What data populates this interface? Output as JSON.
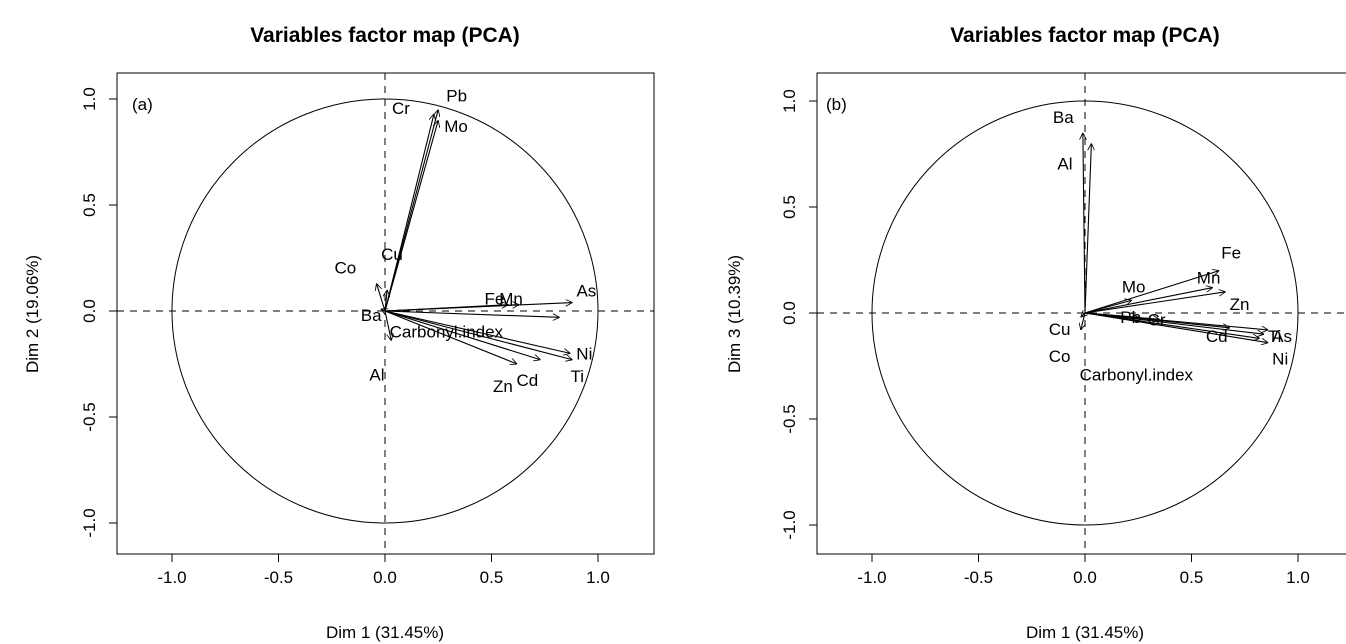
{
  "chart_data": [
    {
      "type": "scatter",
      "panel_label": "(a)",
      "title": "Variables factor map (PCA)",
      "xlabel": "Dim 1 (31.45%)",
      "ylabel": "Dim 2 (19.06%)",
      "xlim": [
        -1.0,
        1.0
      ],
      "ylim": [
        -1.0,
        1.0
      ],
      "xticks": [
        "-1.0",
        "-0.5",
        "0.0",
        "0.5",
        "1.0"
      ],
      "yticks": [
        "-1.0",
        "-0.5",
        "0.0",
        "0.5",
        "1.0"
      ],
      "variables": [
        {
          "name": "Pb",
          "x": 0.25,
          "y": 0.95
        },
        {
          "name": "Cr",
          "x": 0.23,
          "y": 0.93
        },
        {
          "name": "Mo",
          "x": 0.25,
          "y": 0.9
        },
        {
          "name": "Cu",
          "x": 0.01,
          "y": 0.1
        },
        {
          "name": "Co",
          "x": -0.04,
          "y": 0.13
        },
        {
          "name": "Ba",
          "x": -0.02,
          "y": 0.01
        },
        {
          "name": "Al",
          "x": 0.03,
          "y": -0.14
        },
        {
          "name": "Fe",
          "x": 0.58,
          "y": 0.03
        },
        {
          "name": "Mn",
          "x": 0.63,
          "y": 0.03
        },
        {
          "name": "As",
          "x": 0.88,
          "y": 0.04
        },
        {
          "name": "Carbonyl.index",
          "x": 0.82,
          "y": -0.03
        },
        {
          "name": "Ni",
          "x": 0.87,
          "y": -0.2
        },
        {
          "name": "Ti",
          "x": 0.88,
          "y": -0.23
        },
        {
          "name": "Cd",
          "x": 0.73,
          "y": -0.23
        },
        {
          "name": "Zn",
          "x": 0.62,
          "y": -0.25
        }
      ]
    },
    {
      "type": "scatter",
      "panel_label": "(b)",
      "title": "Variables factor map (PCA)",
      "xlabel": "Dim 1 (31.45%)",
      "ylabel": "Dim 3 (10.39%)",
      "xlim": [
        -1.0,
        1.0
      ],
      "ylim": [
        -1.0,
        1.0
      ],
      "xticks": [
        "-1.0",
        "-0.5",
        "0.0",
        "0.5",
        "1.0"
      ],
      "yticks": [
        "-1.0",
        "-0.5",
        "0.0",
        "0.5",
        "1.0"
      ],
      "variables": [
        {
          "name": "Ba",
          "x": -0.01,
          "y": 0.85
        },
        {
          "name": "Al",
          "x": 0.03,
          "y": 0.8
        },
        {
          "name": "Fe",
          "x": 0.63,
          "y": 0.2
        },
        {
          "name": "Mn",
          "x": 0.6,
          "y": 0.12
        },
        {
          "name": "Zn",
          "x": 0.66,
          "y": 0.1
        },
        {
          "name": "Mo",
          "x": 0.22,
          "y": 0.06
        },
        {
          "name": "Cu",
          "x": -0.02,
          "y": -0.02
        },
        {
          "name": "Co",
          "x": -0.02,
          "y": -0.08
        },
        {
          "name": "Pb",
          "x": 0.25,
          "y": -0.02
        },
        {
          "name": "Cr",
          "x": 0.35,
          "y": -0.03
        },
        {
          "name": "Cd",
          "x": 0.68,
          "y": -0.07
        },
        {
          "name": "Ti",
          "x": 0.84,
          "y": -0.1
        },
        {
          "name": "As",
          "x": 0.86,
          "y": -0.08
        },
        {
          "name": "Ni",
          "x": 0.86,
          "y": -0.14
        },
        {
          "name": "Carbonyl.index",
          "x": 0.82,
          "y": -0.12
        }
      ]
    }
  ]
}
